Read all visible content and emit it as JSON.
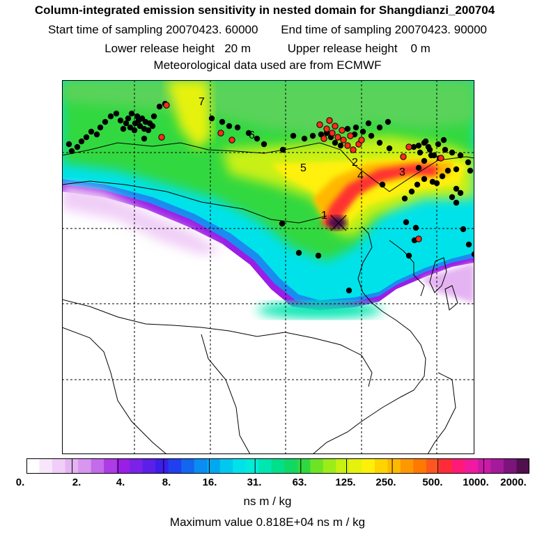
{
  "header": {
    "title": "Column-integrated emission sensitivity in nested domain for Shangdianzi_200704",
    "start_label": "Start time of sampling 20070423. 60000",
    "end_label": "End time of sampling 20070423. 90000",
    "lower_label": "Lower release height   20 m",
    "upper_label": "Upper release height    0 m",
    "met_label": "Meteorological data used are from ECMWF"
  },
  "map": {
    "annotations": [
      "1",
      "2",
      "3",
      "4",
      "5",
      "6",
      "7"
    ],
    "colors": {
      "background_high": "#5ad35a",
      "plume_core": "#ff3030",
      "plume_mid": "#ffd400",
      "edge_cyan": "#00e8e0",
      "edge_purple": "#9a1ee6",
      "point_black": "#000000",
      "point_red": "#ff2a1a"
    }
  },
  "legend": {
    "ticks": [
      "0.",
      "2.",
      "4.",
      "8.",
      "16.",
      "31.",
      "63.",
      "125.",
      "250.",
      "500.",
      "1000.",
      "2000."
    ],
    "unit": "ns m / kg",
    "colors": [
      "#ffffff",
      "#f8e6fb",
      "#f0cef7",
      "#e4b4f2",
      "#d896ee",
      "#c36bea",
      "#ad3ce6",
      "#9a1ee6",
      "#7a22e8",
      "#5c1fe8",
      "#3b1ee9",
      "#2040f0",
      "#1266f0",
      "#0a8cf2",
      "#00a8f0",
      "#00c8ee",
      "#00e2ea",
      "#00ecd8",
      "#00e6b0",
      "#00e08a",
      "#10d864",
      "#30d840",
      "#6ce426",
      "#9cec1a",
      "#c8f012",
      "#e6f20c",
      "#fff00a",
      "#ffd400",
      "#ffb800",
      "#ff9800",
      "#ff7800",
      "#ff5620",
      "#ff2a3a",
      "#ff1a78",
      "#f01aa0",
      "#cc1aa8",
      "#a41a9a",
      "#7c147c",
      "#50104e"
    ]
  },
  "footer": {
    "max_value": "Maximum value  0.818E+04 ns m / kg"
  }
}
